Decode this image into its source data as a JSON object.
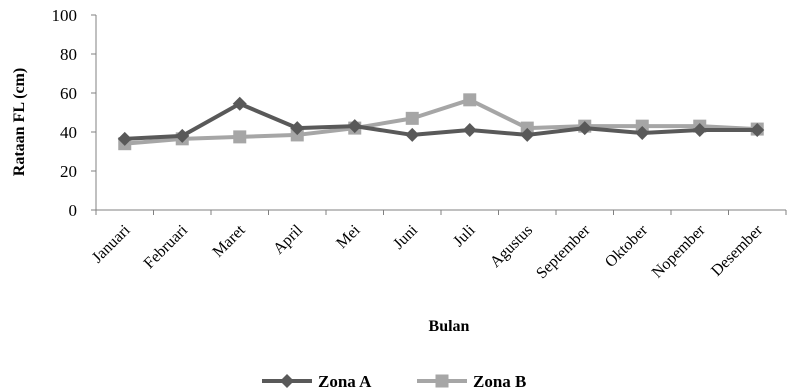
{
  "chart_data": {
    "type": "line",
    "xlabel": "Bulan",
    "ylabel": "Rataan  FL  (cm)",
    "ylim": [
      0,
      100
    ],
    "yticks": [
      0,
      20,
      40,
      60,
      80,
      100
    ],
    "grid": false,
    "legend_position": "bottom",
    "categories": [
      "Januari",
      "Februari",
      "Maret",
      "April",
      "Mei",
      "Juni",
      "Juli",
      "Agustus",
      "September",
      "Oktober",
      "Nopember",
      "Desember"
    ],
    "series": [
      {
        "name": "Zona A",
        "marker": "diamond",
        "color": "#595959",
        "values": [
          36.5,
          38,
          54.5,
          42,
          43,
          38.5,
          41,
          38.5,
          42,
          39.5,
          41,
          41
        ]
      },
      {
        "name": "Zona B",
        "marker": "square",
        "color": "#a6a6a6",
        "values": [
          34,
          36.5,
          37.5,
          38.5,
          42,
          47,
          56.5,
          42,
          43,
          43,
          43,
          41.5
        ]
      }
    ]
  }
}
